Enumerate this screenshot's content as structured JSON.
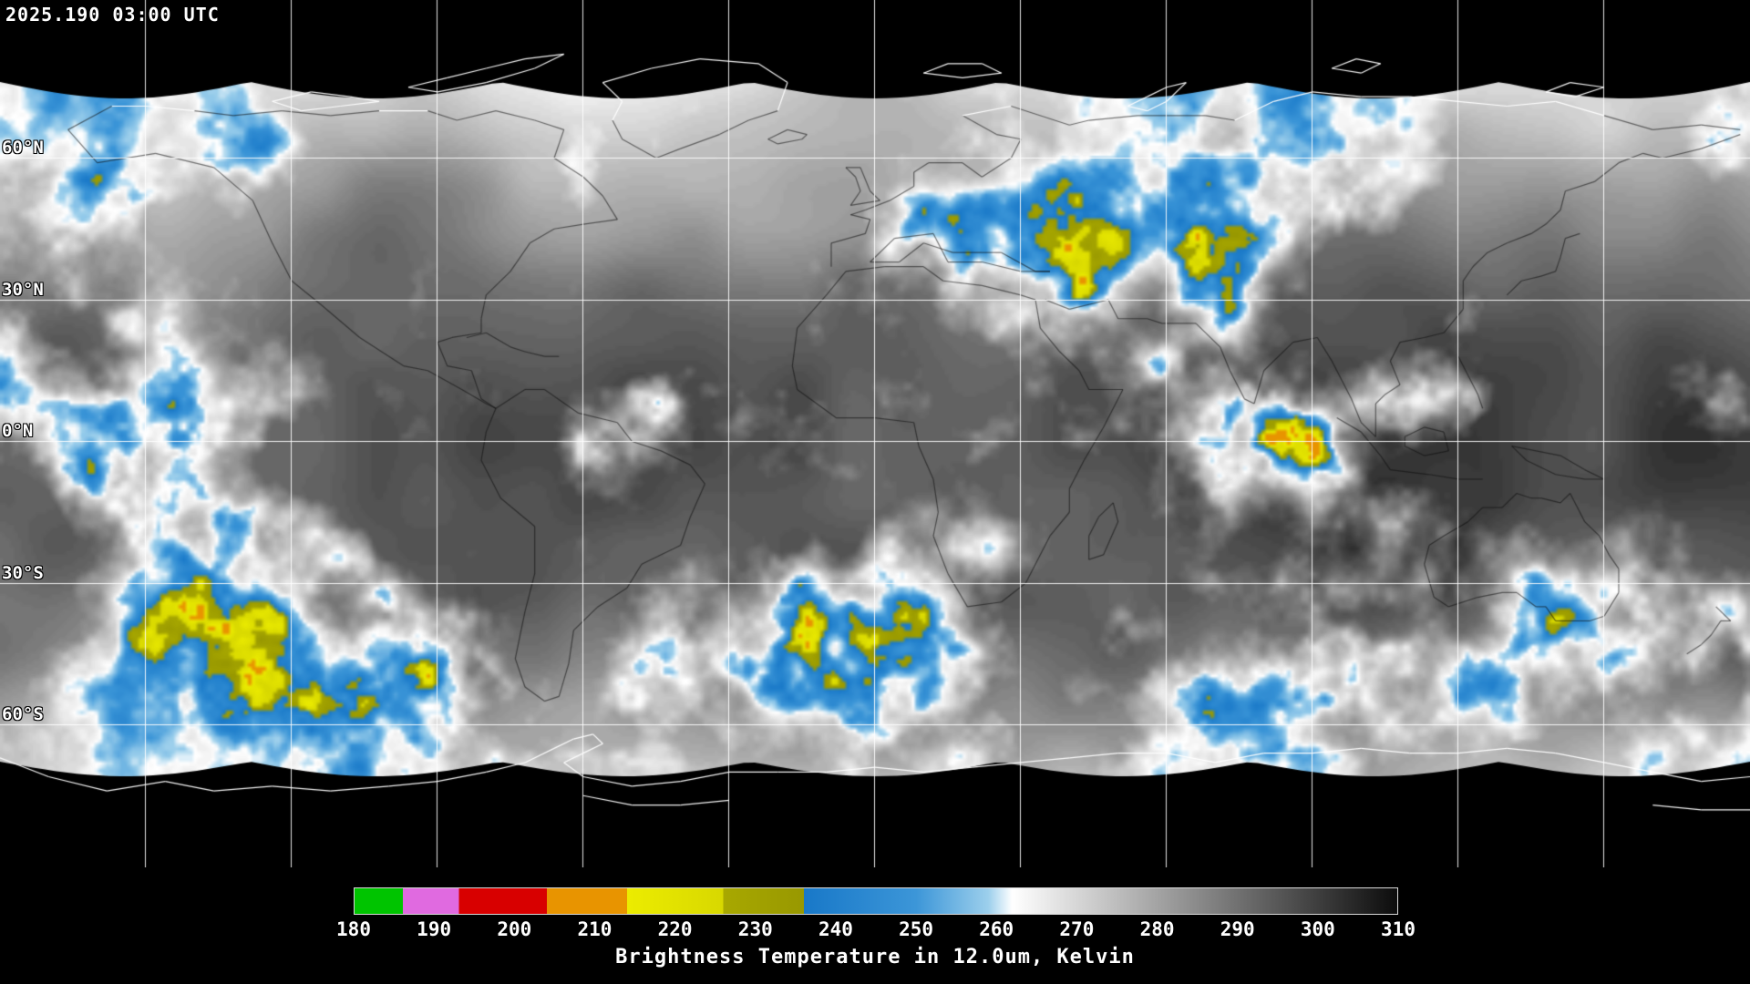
{
  "header": {
    "timestamp": "2025.190 03:00 UTC"
  },
  "map": {
    "latitude_labels": [
      {
        "label": "60°N",
        "lat": 60
      },
      {
        "label": "30°N",
        "lat": 30
      },
      {
        "label": "0°N",
        "lat": 0
      },
      {
        "label": "30°S",
        "lat": -30
      },
      {
        "label": "60°S",
        "lat": -60
      }
    ],
    "grid": {
      "lon_step_deg": 30,
      "lat_step_deg": 30,
      "color": "#ffffff"
    }
  },
  "colorbar": {
    "title": "Brightness Temperature in 12.0um, Kelvin",
    "units": "Kelvin",
    "min": 180,
    "max": 310,
    "ticks": [
      180,
      190,
      200,
      210,
      220,
      230,
      240,
      250,
      260,
      270,
      280,
      290,
      300,
      310
    ],
    "stops": [
      {
        "v": 180,
        "c": "#00c400"
      },
      {
        "v": 186,
        "c": "#00c400"
      },
      {
        "v": 186,
        "c": "#e06ae0"
      },
      {
        "v": 193,
        "c": "#e06ae0"
      },
      {
        "v": 193,
        "c": "#d80000"
      },
      {
        "v": 204,
        "c": "#d80000"
      },
      {
        "v": 204,
        "c": "#e89400"
      },
      {
        "v": 214,
        "c": "#e89400"
      },
      {
        "v": 214,
        "c": "#ecec00"
      },
      {
        "v": 226,
        "c": "#d8d800"
      },
      {
        "v": 226,
        "c": "#a8a800"
      },
      {
        "v": 236,
        "c": "#989800"
      },
      {
        "v": 236,
        "c": "#1878c8"
      },
      {
        "v": 250,
        "c": "#3c96d8"
      },
      {
        "v": 259,
        "c": "#9ccfec"
      },
      {
        "v": 262,
        "c": "#ffffff"
      },
      {
        "v": 310,
        "c": "#0c0c0c"
      }
    ]
  }
}
